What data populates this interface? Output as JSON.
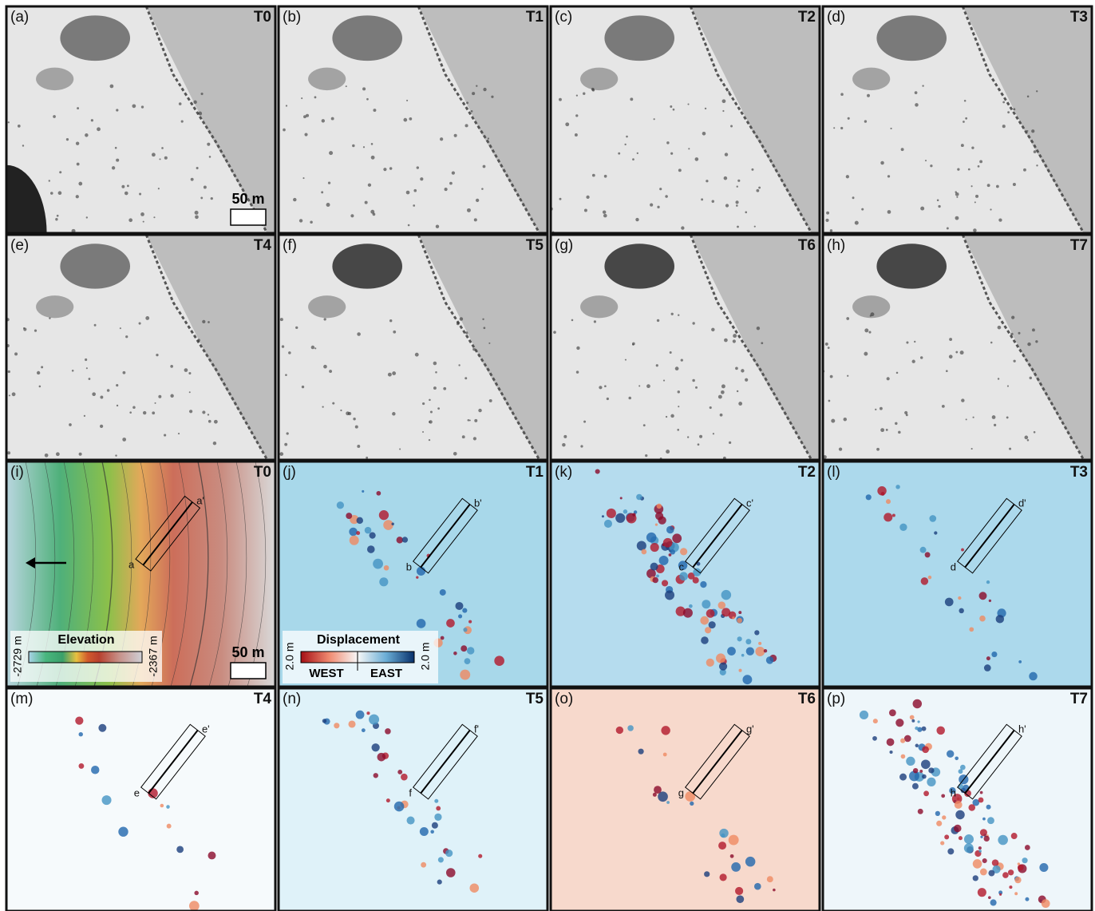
{
  "panels": [
    {
      "label": "(a)",
      "time": "T0"
    },
    {
      "label": "(b)",
      "time": "T1"
    },
    {
      "label": "(c)",
      "time": "T2"
    },
    {
      "label": "(d)",
      "time": "T3"
    },
    {
      "label": "(e)",
      "time": "T4"
    },
    {
      "label": "(f)",
      "time": "T5"
    },
    {
      "label": "(g)",
      "time": "T6"
    },
    {
      "label": "(h)",
      "time": "T7"
    },
    {
      "label": "(i)",
      "time": "T0",
      "profile": {
        "start": "a",
        "end": "a'"
      }
    },
    {
      "label": "(j)",
      "time": "T1",
      "profile": {
        "start": "b",
        "end": "b'"
      }
    },
    {
      "label": "(k)",
      "time": "T2",
      "profile": {
        "start": "c",
        "end": "c'"
      }
    },
    {
      "label": "(l)",
      "time": "T3",
      "profile": {
        "start": "d",
        "end": "d'"
      }
    },
    {
      "label": "(m)",
      "time": "T4",
      "profile": {
        "start": "e",
        "end": "e'"
      }
    },
    {
      "label": "(n)",
      "time": "T5",
      "profile": {
        "start": "f",
        "end": "f'"
      }
    },
    {
      "label": "(o)",
      "time": "T6",
      "profile": {
        "start": "g",
        "end": "g'"
      }
    },
    {
      "label": "(p)",
      "time": "T7",
      "profile": {
        "start": "h",
        "end": "h'"
      }
    }
  ],
  "scale_bar": "50 m",
  "elevation_legend": {
    "title": "Elevation",
    "min": "-2729 m",
    "max": "-2367 m"
  },
  "displacement_legend": {
    "title": "Displacement",
    "west_value": "2.0 m",
    "east_value": "2.0 m",
    "west": "WEST",
    "east": "EAST"
  }
}
